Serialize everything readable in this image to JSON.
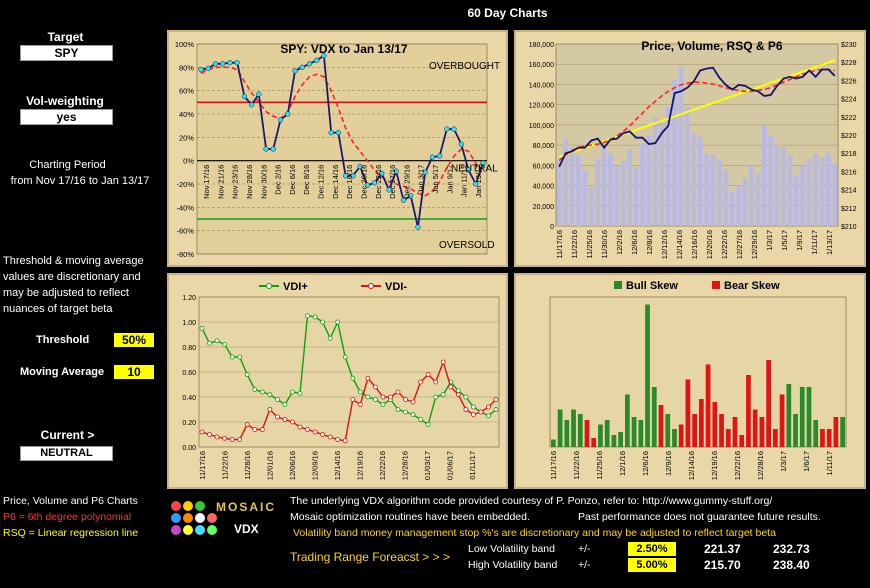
{
  "page_title": "60 Day Charts",
  "left": {
    "target_label": "Target",
    "target_value": "SPY",
    "volw_label": "Vol-weighting",
    "volw_value": "yes",
    "period_label": "Charting Period",
    "period_value": "from Nov 17/16 to Jan 13/17",
    "note": "Threshold & moving average values are discretionary and may be adjusted to reflect nuances of target beta",
    "threshold_label": "Threshold",
    "threshold_value": "50%",
    "ma_label": "Moving Average",
    "ma_value": "10",
    "current_label": "Current >",
    "current_value": "NEUTRAL",
    "legend1": "Price, Volume and P6 Charts",
    "legend2": "P6 = 6th degree polynomial",
    "legend3": "RSQ = Linear regression line",
    "colors": {
      "legend2": "#ff3333",
      "legend3": "#ffff00"
    }
  },
  "logo": {
    "text": "MOSAIC",
    "sub": "VDX",
    "dots": [
      "#ff4444",
      "#ffcc00",
      "#33cc33",
      "#3399ff",
      "#ff8800",
      "#ffffff",
      "#cc44cc",
      "#ffff33",
      "#44ddff",
      "#ff6666",
      "#66ff66"
    ]
  },
  "footer": {
    "line1": "The underlying VDX algorithm code provided courtesy of P. Ponzo, refer to:  http://www.gummy-stuff.org/",
    "line2a": "Mosaic optimization routines have been embedded.",
    "line2b": "Past performance does not guarantee future results.",
    "line3": "Volatility band money management stop %'s are discretionary and may be adjusted to reflect target beta",
    "trading_label": "Trading Range Foreacst > > >",
    "low_label": "Low Volatility band",
    "high_label": "High Volatility band",
    "pm": "+/-",
    "low_pct": "2.50%",
    "high_pct": "5.00%",
    "low_lo": "221.37",
    "low_hi": "232.73",
    "high_lo": "215.70",
    "high_hi": "238.40"
  },
  "chart_data": [
    {
      "type": "line",
      "title": "SPY:    VDX to Jan 13/17",
      "annotations": [
        "OVERBOUGHT",
        "NEUTRAL",
        "OVERSOLD"
      ],
      "ylim": [
        -80,
        100
      ],
      "yticks": [
        "100%",
        "80%",
        "60%",
        "40%",
        "20%",
        "0%",
        "-20%",
        "-40%",
        "-60%",
        "-80%"
      ],
      "xticks": [
        "Nov 17/16",
        "Nov 21/16",
        "Nov 23/16",
        "Nov 28/16",
        "Nov 30/16",
        "Dec 2/16",
        "Dec 6/16",
        "Dec 8/16",
        "Dec 12/16",
        "Dec 14/16",
        "Dec 16/16",
        "Dec 20/16",
        "Dec 22/16",
        "Dec 27/16",
        "Dec 29/16",
        "Jan 3/17",
        "Jan 5/17",
        "Jan 9/17",
        "Jan 11/17",
        "Jan 13/17"
      ],
      "threshold_upper": 50,
      "threshold_lower": -50,
      "series": [
        {
          "values": [
            78,
            79,
            83,
            83,
            84,
            84,
            55,
            48,
            57,
            10,
            10,
            35,
            40,
            77,
            80,
            83,
            86,
            90,
            24,
            24,
            -13,
            -13,
            -5,
            -21,
            -19,
            -11,
            -25,
            -9,
            -34,
            -30,
            -57,
            -10,
            3,
            4,
            27,
            27,
            14,
            -8,
            -20,
            -2
          ]
        },
        {
          "values": [
            75,
            78,
            80,
            80,
            80,
            78,
            68,
            58,
            50,
            42,
            38,
            36,
            42,
            55,
            65,
            72,
            74,
            72,
            60,
            45,
            28,
            16,
            8,
            0,
            -8,
            -14,
            -18,
            -20,
            -22,
            -24,
            -28,
            -30,
            -26,
            -18,
            -6,
            4,
            10,
            8,
            -2,
            -12
          ]
        }
      ],
      "colors": {
        "vdx": "#1a1a6e",
        "marker": "#33ddee",
        "ma": "#ff2222",
        "upper": "#e01010",
        "lower": "#10a010"
      }
    },
    {
      "type": "bar",
      "title": "Price,  Volume, RSQ & P6",
      "ylim_left": [
        0,
        180000
      ],
      "ylim_right": [
        210,
        230
      ],
      "yticks_left": [
        "180,000",
        "160,000",
        "140,000",
        "120,000",
        "100,000",
        "80,000",
        "60,000",
        "40,000",
        "20,000",
        "0"
      ],
      "yticks_right": [
        "$230",
        "$228",
        "$226",
        "$224",
        "$222",
        "$220",
        "$218",
        "$216",
        "$214",
        "$212",
        "$210"
      ],
      "xticks": [
        "11/17/16",
        "11/22/16",
        "11/25/16",
        "11/30/16",
        "12/2/16",
        "12/6/16",
        "12/8/16",
        "12/12/16",
        "12/14/16",
        "12/16/16",
        "12/20/16",
        "12/22/16",
        "12/27/16",
        "12/29/16",
        "1/3/17",
        "1/5/17",
        "1/9/17",
        "1/11/17",
        "1/13/17"
      ],
      "volume": [
        64000,
        86000,
        78000,
        70000,
        55000,
        38000,
        66000,
        76000,
        72000,
        60000,
        64000,
        76000,
        58000,
        82000,
        90000,
        108000,
        102000,
        118000,
        145000,
        157000,
        118000,
        92000,
        88000,
        72000,
        70000,
        66000,
        56000,
        34000,
        40000,
        48000,
        60000,
        52000,
        100000,
        90000,
        80000,
        78000,
        70000,
        50000,
        60000,
        66000,
        72000,
        68000,
        72000,
        62000
      ],
      "price": [
        216.5,
        218,
        218.2,
        218.6,
        218.6,
        219.4,
        219.6,
        218.6,
        219.5,
        219.6,
        220.2,
        220.4,
        219.7,
        219.7,
        219,
        219.1,
        220.2,
        221,
        224.6,
        224.8,
        225.2,
        225.9,
        227.1,
        227.3,
        227.4,
        226.3,
        225.5,
        225,
        225.5,
        225.4,
        225,
        224.8,
        224.3,
        224.4,
        225.4,
        226.2,
        226.4,
        226.2,
        226.4,
        227.1,
        226.4,
        227.2,
        227.2,
        226.5
      ],
      "p6": [
        217.2,
        217.8,
        218.3,
        218.6,
        218.8,
        218.9,
        219.0,
        219.2,
        219.5,
        219.9,
        220.4,
        221.0,
        221.7,
        222.4,
        223.1,
        223.7,
        224.3,
        224.8,
        225.2,
        225.5,
        225.7,
        225.8,
        225.8,
        225.7,
        225.6,
        225.4,
        225.2,
        225.0,
        224.9,
        224.8,
        224.8,
        224.9,
        225.0,
        225.2,
        225.5,
        225.8,
        226.1,
        226.4,
        226.7,
        226.9,
        227.1,
        227.2,
        227.2,
        227.1
      ],
      "rsq": [
        217.6,
        228.2
      ],
      "colors": {
        "volume": "#b9b9e6",
        "price": "#14146e",
        "p6": "#ff2222",
        "rsq": "#ffff00"
      }
    },
    {
      "type": "line",
      "legend": [
        "VDI+",
        "VDI-"
      ],
      "ylim": [
        0,
        1.2
      ],
      "yticks": [
        "1.20",
        "1.00",
        "0.80",
        "0.60",
        "0.40",
        "0.20",
        "0.00"
      ],
      "xticks": [
        "11/17/16",
        "11/22/16",
        "11/28/16",
        "12/01/16",
        "12/06/16",
        "12/09/16",
        "12/14/16",
        "12/19/16",
        "12/22/16",
        "12/28/16",
        "01/03/17",
        "01/06/17",
        "01/11/17"
      ],
      "series": [
        {
          "name": "VDI+",
          "values": [
            0.95,
            0.83,
            0.85,
            0.82,
            0.72,
            0.72,
            0.58,
            0.46,
            0.44,
            0.42,
            0.38,
            0.34,
            0.44,
            0.43,
            1.05,
            1.04,
            1.0,
            0.87,
            1.0,
            0.72,
            0.55,
            0.44,
            0.4,
            0.38,
            0.34,
            0.38,
            0.3,
            0.28,
            0.26,
            0.22,
            0.18,
            0.4,
            0.42,
            0.52,
            0.45,
            0.4,
            0.32,
            0.28,
            0.25,
            0.3
          ]
        },
        {
          "name": "VDI-",
          "values": [
            0.12,
            0.1,
            0.08,
            0.07,
            0.06,
            0.06,
            0.18,
            0.14,
            0.14,
            0.3,
            0.24,
            0.22,
            0.2,
            0.16,
            0.14,
            0.12,
            0.1,
            0.08,
            0.06,
            0.05,
            0.38,
            0.34,
            0.55,
            0.48,
            0.4,
            0.4,
            0.44,
            0.38,
            0.36,
            0.52,
            0.58,
            0.52,
            0.68,
            0.48,
            0.42,
            0.3,
            0.26,
            0.28,
            0.32,
            0.38
          ]
        }
      ],
      "colors": {
        "VDI+": "#10a010",
        "VDI-": "#e01010"
      }
    },
    {
      "type": "bar",
      "legend": [
        "Bull Skew",
        "Bear Skew"
      ],
      "xticks": [
        "11/17/16",
        "11/22/16",
        "11/25/16",
        "12/1/16",
        "12/6/16",
        "12/9/16",
        "12/14/16",
        "12/19/16",
        "12/22/16",
        "12/28/16",
        "1/3/17",
        "1/6/17",
        "1/11/17"
      ],
      "bars": [
        {
          "kind": "bull",
          "value": 0.05
        },
        {
          "kind": "bull",
          "value": 0.25
        },
        {
          "kind": "bull",
          "value": 0.18
        },
        {
          "kind": "bull",
          "value": 0.25
        },
        {
          "kind": "bull",
          "value": 0.22
        },
        {
          "kind": "bear",
          "value": 0.18
        },
        {
          "kind": "bear",
          "value": 0.06
        },
        {
          "kind": "bull",
          "value": 0.15
        },
        {
          "kind": "bull",
          "value": 0.18
        },
        {
          "kind": "bull",
          "value": 0.08
        },
        {
          "kind": "bull",
          "value": 0.1
        },
        {
          "kind": "bull",
          "value": 0.35
        },
        {
          "kind": "bull",
          "value": 0.2
        },
        {
          "kind": "bull",
          "value": 0.18
        },
        {
          "kind": "bull",
          "value": 0.95
        },
        {
          "kind": "bull",
          "value": 0.4
        },
        {
          "kind": "bear",
          "value": 0.28
        },
        {
          "kind": "bull",
          "value": 0.22
        },
        {
          "kind": "bull",
          "value": 0.12
        },
        {
          "kind": "bear",
          "value": 0.15
        },
        {
          "kind": "bear",
          "value": 0.45
        },
        {
          "kind": "bear",
          "value": 0.22
        },
        {
          "kind": "bear",
          "value": 0.32
        },
        {
          "kind": "bear",
          "value": 0.55
        },
        {
          "kind": "bear",
          "value": 0.3
        },
        {
          "kind": "bear",
          "value": 0.22
        },
        {
          "kind": "bear",
          "value": 0.12
        },
        {
          "kind": "bear",
          "value": 0.2
        },
        {
          "kind": "bear",
          "value": 0.08
        },
        {
          "kind": "bear",
          "value": 0.48
        },
        {
          "kind": "bear",
          "value": 0.25
        },
        {
          "kind": "bear",
          "value": 0.2
        },
        {
          "kind": "bear",
          "value": 0.58
        },
        {
          "kind": "bear",
          "value": 0.12
        },
        {
          "kind": "bear",
          "value": 0.35
        },
        {
          "kind": "bull",
          "value": 0.42
        },
        {
          "kind": "bull",
          "value": 0.22
        },
        {
          "kind": "bull",
          "value": 0.4
        },
        {
          "kind": "bull",
          "value": 0.4
        },
        {
          "kind": "bull",
          "value": 0.18
        },
        {
          "kind": "bear",
          "value": 0.12
        },
        {
          "kind": "bear",
          "value": 0.12
        },
        {
          "kind": "bear",
          "value": 0.2
        },
        {
          "kind": "bull",
          "value": 0.2
        }
      ],
      "colors": {
        "bull": "#2a8a2a",
        "bear": "#e01414"
      }
    }
  ]
}
